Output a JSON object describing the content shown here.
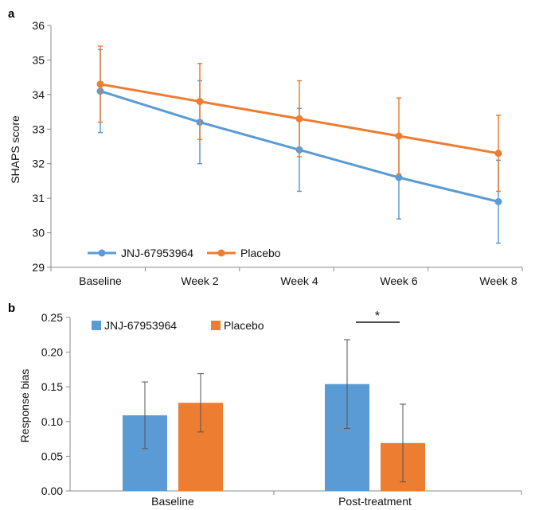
{
  "panel_a": {
    "label": "a"
  },
  "panel_b": {
    "label": "b"
  },
  "chart_data": [
    {
      "type": "line",
      "categories": [
        "Baseline",
        "Week 2",
        "Week 4",
        "Week 6",
        "Week 8"
      ],
      "ylabel": "SHAPS score",
      "xlabel": "",
      "ylim": [
        29,
        36
      ],
      "yticks": [
        "29",
        "30",
        "31",
        "32",
        "33",
        "34",
        "35",
        "36"
      ],
      "grid": false,
      "legend_position": "bottom-left",
      "series": [
        {
          "name": "JNJ-67953964",
          "color": "#5b9bd5",
          "values": [
            34.1,
            33.2,
            32.4,
            31.6,
            30.9
          ],
          "err_low": [
            32.9,
            32.0,
            31.2,
            30.4,
            29.7
          ],
          "err_high": [
            35.3,
            34.4,
            33.6,
            32.8,
            32.1
          ]
        },
        {
          "name": "Placebo",
          "color": "#ed7d31",
          "values": [
            34.3,
            33.8,
            33.3,
            32.8,
            32.3
          ],
          "err_low": [
            33.2,
            32.7,
            32.2,
            31.7,
            31.2
          ],
          "err_high": [
            35.4,
            34.9,
            34.4,
            33.9,
            33.4
          ]
        }
      ]
    },
    {
      "type": "bar",
      "categories": [
        "Baseline",
        "Post-treatment"
      ],
      "ylabel": "Response bias",
      "xlabel": "",
      "ylim": [
        0,
        0.25
      ],
      "yticks": [
        "0.00",
        "0.05",
        "0.10",
        "0.15",
        "0.20",
        "0.25"
      ],
      "grid": false,
      "legend_position": "top-left",
      "significance": {
        "between": "Post-treatment",
        "marker": "*"
      },
      "series": [
        {
          "name": "JNJ-67953964",
          "color": "#5b9bd5",
          "values": [
            0.109,
            0.154
          ],
          "err_low": [
            0.061,
            0.09
          ],
          "err_high": [
            0.157,
            0.218
          ]
        },
        {
          "name": "Placebo",
          "color": "#ed7d31",
          "values": [
            0.127,
            0.069
          ],
          "err_low": [
            0.085,
            0.013
          ],
          "err_high": [
            0.169,
            0.125
          ]
        }
      ]
    }
  ]
}
